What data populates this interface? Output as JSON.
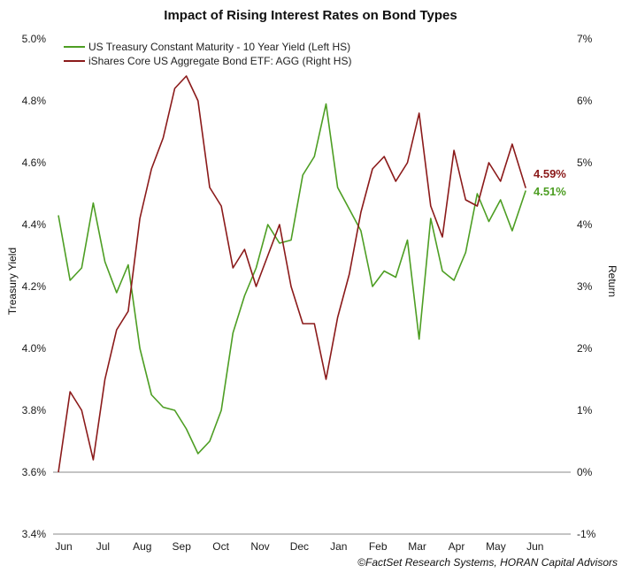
{
  "chart_data": {
    "type": "line",
    "title": "Impact of Rising Interest Rates on Bond Types",
    "ylabel_left": "Treasury Yield",
    "ylabel_right": "Return",
    "ylim_left": [
      3.4,
      5.0
    ],
    "ylim_right": [
      -1,
      7
    ],
    "yticks_left": [
      "5.0%",
      "4.8%",
      "4.6%",
      "4.4%",
      "4.2%",
      "4.0%",
      "3.8%",
      "3.6%",
      "3.4%"
    ],
    "yticks_right": [
      "7%",
      "6%",
      "5%",
      "4%",
      "3%",
      "2%",
      "1%",
      "0%",
      "-1%"
    ],
    "x_months": [
      "Jun",
      "Jul",
      "Aug",
      "Sep",
      "Oct",
      "Nov",
      "Dec",
      "Jan",
      "Feb",
      "Mar",
      "Apr",
      "May",
      "Jun"
    ],
    "grid": false,
    "legend": "top-left",
    "source": "©FactSet Research Systems, HORAN Capital Advisors",
    "series": [
      {
        "name": "US Treasury Constant Maturity - 10 Year Yield (Left HS)",
        "axis": "left",
        "color": "#4d9e23",
        "end_label": "4.51%",
        "x": [
          0,
          0.3,
          0.6,
          0.9,
          1.2,
          1.5,
          1.8,
          2.1,
          2.4,
          2.7,
          3.0,
          3.3,
          3.6,
          3.9,
          4.2,
          4.5,
          4.8,
          5.1,
          5.4,
          5.7,
          6.0,
          6.3,
          6.6,
          6.9,
          7.2,
          7.5,
          7.8,
          8.1,
          8.4,
          8.7,
          9.0,
          9.3,
          9.6,
          9.9,
          10.2,
          10.5,
          10.8,
          11.1,
          11.4,
          11.7,
          12.05
        ],
        "values": [
          4.43,
          4.22,
          4.26,
          4.47,
          4.28,
          4.18,
          4.27,
          4.0,
          3.85,
          3.81,
          3.8,
          3.74,
          3.66,
          3.7,
          3.8,
          4.05,
          4.17,
          4.26,
          4.4,
          4.34,
          4.35,
          4.56,
          4.62,
          4.79,
          4.52,
          4.45,
          4.38,
          4.2,
          4.25,
          4.23,
          4.35,
          4.03,
          4.42,
          4.25,
          4.22,
          4.31,
          4.5,
          4.41,
          4.48,
          4.38,
          4.51
        ]
      },
      {
        "name": "iShares Core US Aggregate Bond ETF: AGG (Right HS)",
        "axis": "right",
        "color": "#8b1a1a",
        "end_label": "4.59%",
        "x": [
          0,
          0.3,
          0.6,
          0.9,
          1.2,
          1.5,
          1.8,
          2.1,
          2.4,
          2.7,
          3.0,
          3.3,
          3.6,
          3.9,
          4.2,
          4.5,
          4.8,
          5.1,
          5.4,
          5.7,
          6.0,
          6.3,
          6.6,
          6.9,
          7.2,
          7.5,
          7.8,
          8.1,
          8.4,
          8.7,
          9.0,
          9.3,
          9.6,
          9.9,
          10.2,
          10.5,
          10.8,
          11.1,
          11.4,
          11.7,
          12.05
        ],
        "values": [
          0.0,
          1.3,
          1.0,
          0.2,
          1.5,
          2.3,
          2.6,
          4.1,
          4.9,
          5.4,
          6.2,
          6.4,
          6.0,
          4.6,
          4.3,
          3.3,
          3.6,
          3.0,
          3.5,
          4.0,
          3.0,
          2.4,
          2.4,
          1.5,
          2.5,
          3.2,
          4.2,
          4.9,
          5.1,
          4.7,
          5.0,
          5.8,
          4.3,
          3.8,
          5.2,
          4.4,
          4.3,
          5.0,
          4.7,
          5.3,
          4.59
        ]
      }
    ]
  }
}
